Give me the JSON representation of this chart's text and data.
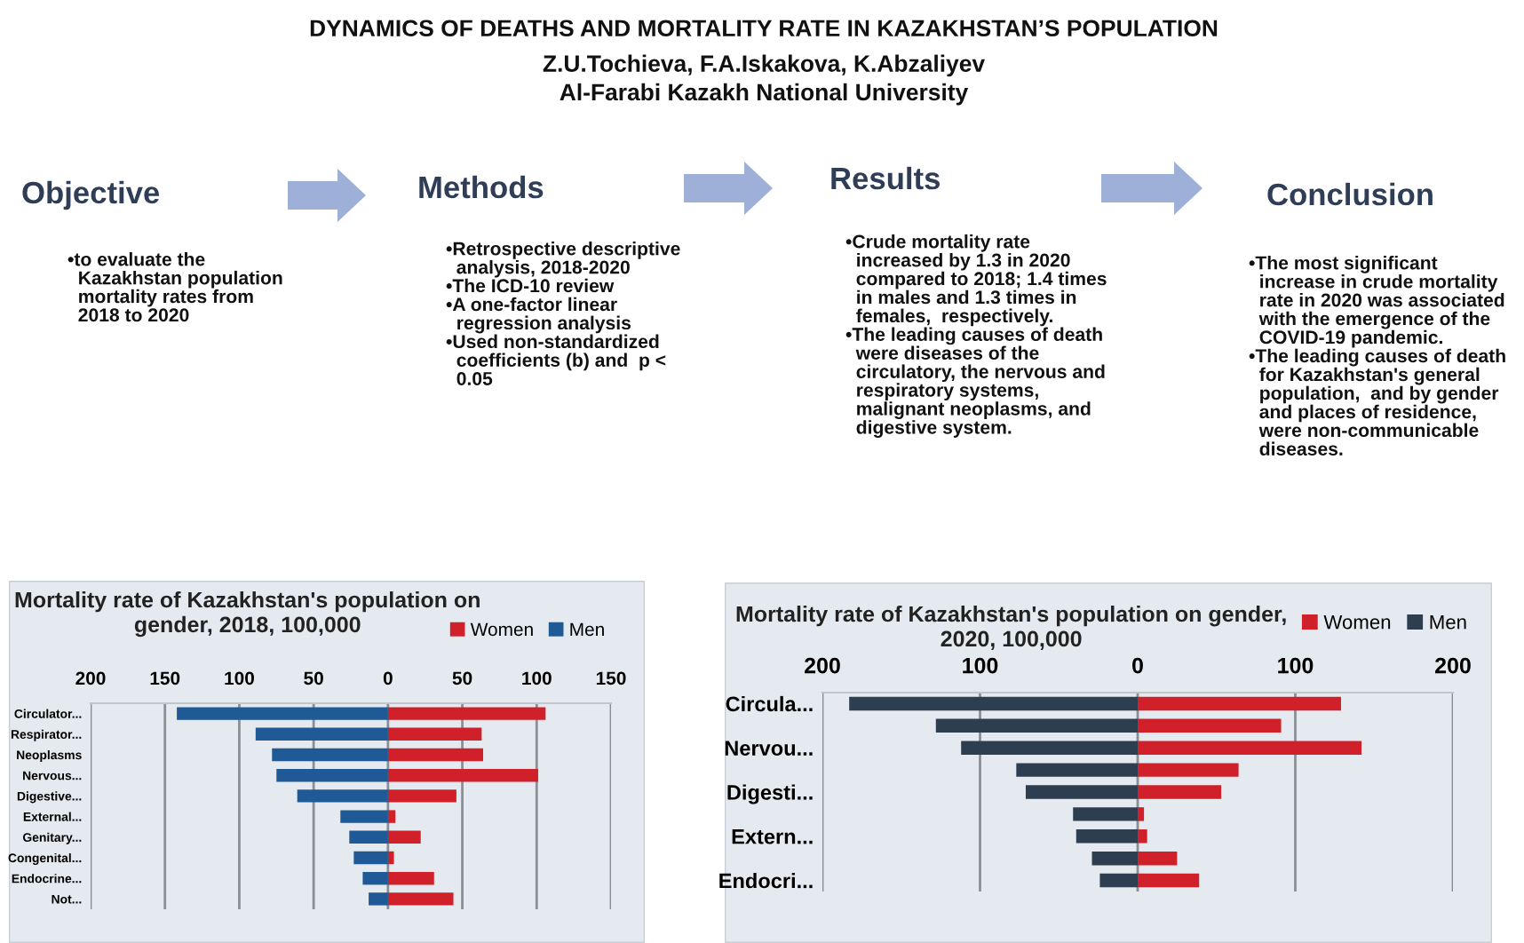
{
  "chart_data": [
    {
      "type": "other",
      "title": "DYNAMICS OF DEATHS AND MORTALITY RATE IN KAZAKHSTAN’S POPULATION",
      "subtitle": "Z.U.Tochieva, F.A.Iskakova, K.Abzaliyev\nAl-Farabi Kazakh National University",
      "annotations": [
        "Objective",
        "•to evaluate the\n  Kazakhstan population\n  mortality rates from\n  2018 to 2020",
        "Methods",
        "•Retrospective descriptive\n  analysis, 2018-2020\n•The ICD-10 review\n•A one-factor linear\n  regression analysis\n•Used non-standardized\n  coefficients (b) and  p <\n  0.05",
        "Results",
        "•Crude mortality rate\n  increased by 1.3 in 2020\n  compared to 2018; 1.4 times\n  in males and 1.3 times in\n  females,  respectively.\n•The leading causes of death\n  were diseases of the\n  circulatory, the nervous and\n  respiratory systems,\n  malignant neoplasms, and\n  digestive system.",
        "Conclusion",
        "•The most significant\n  increase in crude mortality\n  rate in 2020 was associated\n  with the emergence of the\n  COVID-19 pandemic.\n•The leading causes of death\n  for Kazakhstan's general\n  population,  and by gender\n  and places of residence,\n  were non-communicable\n  diseases."
      ]
    },
    {
      "type": "bar",
      "orientation": "horizontal",
      "title": "Mortality rate of Kazakhstan's population on\ngender, 2018, 100,000",
      "categories": [
        "Circulator...",
        "Respirator...",
        "Neoplasms",
        "Nervous...",
        "Digestive...",
        "External...",
        "Genitary...",
        "Congenital...",
        "Endocrine...",
        "Not..."
      ],
      "series": [
        {
          "name": "Women",
          "color": "#d0202a",
          "values": [
            106,
            63,
            64,
            101,
            46,
            5,
            22,
            4,
            31,
            44
          ]
        },
        {
          "name": "Men",
          "color": "#1f5a96",
          "values": [
            -142,
            -89,
            -78,
            -75,
            -61,
            -32,
            -26,
            -23,
            -17,
            -13
          ]
        }
      ],
      "stacked": true,
      "xlim": [
        -200,
        150
      ],
      "xticks": [
        {
          "value": -200,
          "label": "200"
        },
        {
          "value": -150,
          "label": "150"
        },
        {
          "value": -100,
          "label": "100"
        },
        {
          "value": -50,
          "label": "50"
        },
        0,
        50,
        100,
        150
      ],
      "grid": "x",
      "legend": "top right"
    },
    {
      "type": "bar",
      "orientation": "horizontal",
      "title": "Mortality rate of Kazakhstan's population on gender,\n2020, 100,000",
      "categories": [
        "Circula...",
        null,
        "Nervou...",
        null,
        "Digesti...",
        null,
        "Extern...",
        null,
        "Endocri..."
      ],
      "series": [
        {
          "name": "Women",
          "color": "#d0202a",
          "values": [
            129,
            91,
            142,
            64,
            53,
            4,
            6,
            25,
            39
          ]
        },
        {
          "name": "Men",
          "color": "#2d3e50",
          "values": [
            -183,
            -128,
            -112,
            -77,
            -71,
            -41,
            -39,
            -29,
            -24
          ]
        }
      ],
      "stacked": true,
      "xlim": [
        -200,
        200
      ],
      "xticks": [
        {
          "value": -200,
          "label": "200"
        },
        {
          "value": -100,
          "label": "100"
        },
        0,
        100,
        200
      ],
      "grid": "x",
      "legend": "top right"
    }
  ]
}
